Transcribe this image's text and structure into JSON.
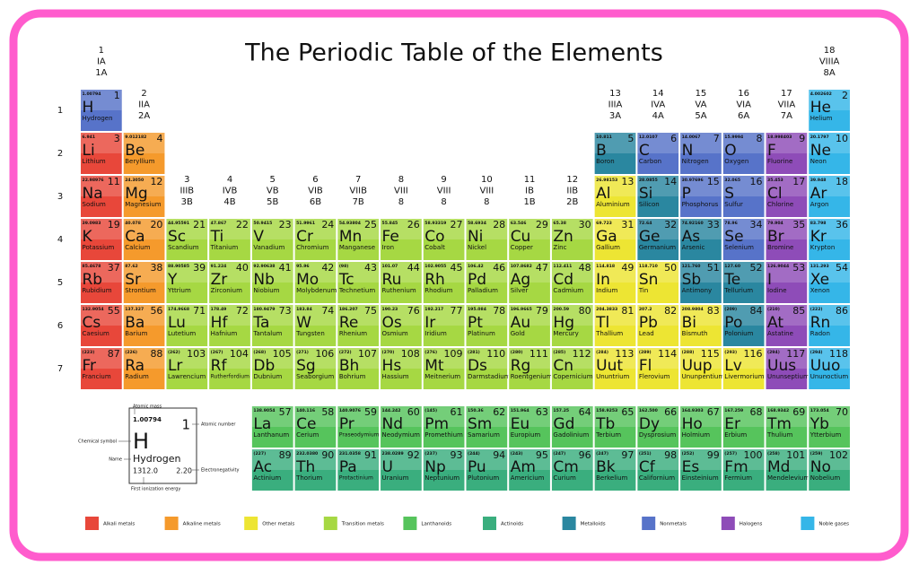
{
  "title": "The Periodic Table of the Elements",
  "groups": [
    [
      "1",
      "IA",
      "1A"
    ],
    [
      "2",
      "IIA",
      "2A"
    ],
    [
      "3",
      "IIIB",
      "3B"
    ],
    [
      "4",
      "IVB",
      "4B"
    ],
    [
      "5",
      "VB",
      "5B"
    ],
    [
      "6",
      "VIB",
      "6B"
    ],
    [
      "7",
      "VIIB",
      "7B"
    ],
    [
      "8",
      "VIII",
      "8"
    ],
    [
      "9",
      "VIII",
      "8"
    ],
    [
      "10",
      "VIII",
      "8"
    ],
    [
      "11",
      "IB",
      "1B"
    ],
    [
      "12",
      "IIB",
      "2B"
    ],
    [
      "13",
      "IIIA",
      "3A"
    ],
    [
      "14",
      "IVA",
      "4A"
    ],
    [
      "15",
      "VA",
      "5A"
    ],
    [
      "16",
      "VIA",
      "6A"
    ],
    [
      "17",
      "VIIA",
      "7A"
    ],
    [
      "18",
      "VIIIA",
      "8A"
    ]
  ],
  "periods": [
    1,
    2,
    3,
    4,
    5,
    6,
    7
  ],
  "elements": [
    [
      "1.00794",
      1,
      "H",
      "Hydrogen",
      "#5773c9"
    ],
    [
      "4.002602",
      2,
      "He",
      "Helium",
      "#35b6e8"
    ],
    [
      "6.941",
      3,
      "Li",
      "Lithium",
      "#e8473a"
    ],
    [
      "9.012182",
      4,
      "Be",
      "Beryllium",
      "#f59a2c"
    ],
    [
      "10.811",
      5,
      "B",
      "Boron",
      "#2a87a0"
    ],
    [
      "12.0107",
      6,
      "C",
      "Carbon",
      "#5773c9"
    ],
    [
      "14.0067",
      7,
      "N",
      "Nitrogen",
      "#5773c9"
    ],
    [
      "15.9994",
      8,
      "O",
      "Oxygen",
      "#5773c9"
    ],
    [
      "18.998403",
      9,
      "F",
      "Fluorine",
      "#8e4cb8"
    ],
    [
      "20.1797",
      10,
      "Ne",
      "Neon",
      "#35b6e8"
    ],
    [
      "22.98976",
      11,
      "Na",
      "Sodium",
      "#e8473a"
    ],
    [
      "24.3050",
      12,
      "Mg",
      "Magnesium",
      "#f59a2c"
    ],
    [
      "26.98153",
      13,
      "Al",
      "Aluminium",
      "#ede533"
    ],
    [
      "28.0855",
      14,
      "Si",
      "Silicon",
      "#2a87a0"
    ],
    [
      "30.97696",
      15,
      "P",
      "Phosphorus",
      "#5773c9"
    ],
    [
      "32.065",
      16,
      "S",
      "Sulfur",
      "#5773c9"
    ],
    [
      "35.453",
      17,
      "Cl",
      "Chlorine",
      "#8e4cb8"
    ],
    [
      "39.948",
      18,
      "Ar",
      "Argon",
      "#35b6e8"
    ],
    [
      "39.0983",
      19,
      "K",
      "Potassium",
      "#e8473a"
    ],
    [
      "40.078",
      20,
      "Ca",
      "Calcium",
      "#f59a2c"
    ],
    [
      "44.95591",
      21,
      "Sc",
      "Scandium",
      "#a6d843"
    ],
    [
      "47.867",
      22,
      "Ti",
      "Titanium",
      "#a6d843"
    ],
    [
      "50.9415",
      23,
      "V",
      "Vanadium",
      "#a6d843"
    ],
    [
      "51.9961",
      24,
      "Cr",
      "Chromium",
      "#a6d843"
    ],
    [
      "54.93804",
      25,
      "Mn",
      "Manganese",
      "#a6d843"
    ],
    [
      "55.845",
      26,
      "Fe",
      "Iron",
      "#a6d843"
    ],
    [
      "58.93319",
      27,
      "Co",
      "Cobalt",
      "#a6d843"
    ],
    [
      "58.6934",
      28,
      "Ni",
      "Nickel",
      "#a6d843"
    ],
    [
      "63.546",
      29,
      "Cu",
      "Copper",
      "#a6d843"
    ],
    [
      "65.38",
      30,
      "Zn",
      "Zinc",
      "#a6d843"
    ],
    [
      "69.723",
      31,
      "Ga",
      "Gallium",
      "#ede533"
    ],
    [
      "72.64",
      32,
      "Ge",
      "Germanium",
      "#2a87a0"
    ],
    [
      "74.92160",
      33,
      "As",
      "Arsenic",
      "#2a87a0"
    ],
    [
      "78.96",
      34,
      "Se",
      "Selenium",
      "#5773c9"
    ],
    [
      "79.904",
      35,
      "Br",
      "Bromine",
      "#8e4cb8"
    ],
    [
      "83.798",
      36,
      "Kr",
      "Krypton",
      "#35b6e8"
    ],
    [
      "85.4678",
      37,
      "Rb",
      "Rubidium",
      "#e8473a"
    ],
    [
      "87.62",
      38,
      "Sr",
      "Strontium",
      "#f59a2c"
    ],
    [
      "88.90585",
      39,
      "Y",
      "Yttrium",
      "#a6d843"
    ],
    [
      "91.224",
      40,
      "Zr",
      "Zirconium",
      "#a6d843"
    ],
    [
      "92.90638",
      41,
      "Nb",
      "Niobium",
      "#a6d843"
    ],
    [
      "95.96",
      42,
      "Mo",
      "Molybdenum",
      "#a6d843"
    ],
    [
      "(98)",
      43,
      "Tc",
      "Technetium",
      "#a6d843"
    ],
    [
      "101.07",
      44,
      "Ru",
      "Ruthenium",
      "#a6d843"
    ],
    [
      "102.9055",
      45,
      "Rh",
      "Rhodium",
      "#a6d843"
    ],
    [
      "106.42",
      46,
      "Pd",
      "Palladium",
      "#a6d843"
    ],
    [
      "107.8682",
      47,
      "Ag",
      "Silver",
      "#a6d843"
    ],
    [
      "112.411",
      48,
      "Cd",
      "Cadmium",
      "#a6d843"
    ],
    [
      "114.818",
      49,
      "In",
      "Indium",
      "#ede533"
    ],
    [
      "118.710",
      50,
      "Sn",
      "Tin",
      "#ede533"
    ],
    [
      "121.760",
      51,
      "Sb",
      "Antimony",
      "#2a87a0"
    ],
    [
      "127.60",
      52,
      "Te",
      "Tellurium",
      "#2a87a0"
    ],
    [
      "126.9044",
      53,
      "I",
      "Iodine",
      "#8e4cb8"
    ],
    [
      "131.293",
      54,
      "Xe",
      "Xenon",
      "#35b6e8"
    ],
    [
      "132.9054",
      55,
      "Cs",
      "Caesium",
      "#e8473a"
    ],
    [
      "137.327",
      56,
      "Ba",
      "Barium",
      "#f59a2c"
    ],
    [
      "174.9668",
      71,
      "Lu",
      "Lutetium",
      "#a6d843"
    ],
    [
      "178.49",
      72,
      "Hf",
      "Hafnium",
      "#a6d843"
    ],
    [
      "180.9479",
      73,
      "Ta",
      "Tantalum",
      "#a6d843"
    ],
    [
      "183.84",
      74,
      "W",
      "Tungsten",
      "#a6d843"
    ],
    [
      "186.207",
      75,
      "Re",
      "Rhenium",
      "#a6d843"
    ],
    [
      "190.23",
      76,
      "Os",
      "Osmium",
      "#a6d843"
    ],
    [
      "192.217",
      77,
      "Ir",
      "Iridium",
      "#a6d843"
    ],
    [
      "195.084",
      78,
      "Pt",
      "Platinum",
      "#a6d843"
    ],
    [
      "196.9665",
      79,
      "Au",
      "Gold",
      "#a6d843"
    ],
    [
      "200.59",
      80,
      "Hg",
      "Mercury",
      "#a6d843"
    ],
    [
      "204.3833",
      81,
      "Tl",
      "Thallium",
      "#ede533"
    ],
    [
      "207.2",
      82,
      "Pb",
      "Lead",
      "#ede533"
    ],
    [
      "208.9804",
      83,
      "Bi",
      "Bismuth",
      "#ede533"
    ],
    [
      "(209)",
      84,
      "Po",
      "Polonium",
      "#2a87a0"
    ],
    [
      "(210)",
      85,
      "At",
      "Astatine",
      "#8e4cb8"
    ],
    [
      "(222)",
      86,
      "Rn",
      "Radon",
      "#35b6e8"
    ],
    [
      "(223)",
      87,
      "Fr",
      "Francium",
      "#e8473a"
    ],
    [
      "(226)",
      88,
      "Ra",
      "Radium",
      "#f59a2c"
    ],
    [
      "(262)",
      103,
      "Lr",
      "Lawrencium",
      "#a6d843"
    ],
    [
      "(267)",
      104,
      "Rf",
      "Rutherfordium",
      "#a6d843"
    ],
    [
      "(268)",
      105,
      "Db",
      "Dubnium",
      "#a6d843"
    ],
    [
      "(271)",
      106,
      "Sg",
      "Seaborgium",
      "#a6d843"
    ],
    [
      "(272)",
      107,
      "Bh",
      "Bohrium",
      "#a6d843"
    ],
    [
      "(270)",
      108,
      "Hs",
      "Hassium",
      "#a6d843"
    ],
    [
      "(276)",
      109,
      "Mt",
      "Meitnerium",
      "#a6d843"
    ],
    [
      "(281)",
      110,
      "Ds",
      "Darmstadium",
      "#a6d843"
    ],
    [
      "(280)",
      111,
      "Rg",
      "Roentgenium",
      "#a6d843"
    ],
    [
      "(285)",
      112,
      "Cn",
      "Copernicium",
      "#a6d843"
    ],
    [
      "(284)",
      113,
      "Uut",
      "Ununtrium",
      "#ede533"
    ],
    [
      "(289)",
      114,
      "Fl",
      "Flerovium",
      "#ede533"
    ],
    [
      "(288)",
      115,
      "Uup",
      "Ununpentium",
      "#ede533"
    ],
    [
      "(293)",
      116,
      "Lv",
      "Livermorium",
      "#ede533"
    ],
    [
      "(294)",
      117,
      "Uus",
      "Ununseptium",
      "#8e4cb8"
    ],
    [
      "(294)",
      118,
      "Uuo",
      "Ununoctium",
      "#35b6e8"
    ],
    [
      "138.9054",
      57,
      "La",
      "Lanthanum",
      "#56c45c"
    ],
    [
      "140.116",
      58,
      "Ce",
      "Cerium",
      "#56c45c"
    ],
    [
      "140.9076",
      59,
      "Pr",
      "Praseodymium",
      "#56c45c"
    ],
    [
      "144.242",
      60,
      "Nd",
      "Neodymium",
      "#56c45c"
    ],
    [
      "(145)",
      61,
      "Pm",
      "Promethium",
      "#56c45c"
    ],
    [
      "150.36",
      62,
      "Sm",
      "Samarium",
      "#56c45c"
    ],
    [
      "151.964",
      63,
      "Eu",
      "Europium",
      "#56c45c"
    ],
    [
      "157.25",
      64,
      "Gd",
      "Gadolinium",
      "#56c45c"
    ],
    [
      "158.9253",
      65,
      "Tb",
      "Terbium",
      "#56c45c"
    ],
    [
      "162.500",
      66,
      "Dy",
      "Dysprosium",
      "#56c45c"
    ],
    [
      "164.9303",
      67,
      "Ho",
      "Holmium",
      "#56c45c"
    ],
    [
      "167.259",
      68,
      "Er",
      "Erbium",
      "#56c45c"
    ],
    [
      "168.9342",
      69,
      "Tm",
      "Thulium",
      "#56c45c"
    ],
    [
      "173.054",
      70,
      "Yb",
      "Ytterbium",
      "#56c45c"
    ],
    [
      "(227)",
      89,
      "Ac",
      "Actinium",
      "#3aae7e"
    ],
    [
      "232.0380",
      90,
      "Th",
      "Thorium",
      "#3aae7e"
    ],
    [
      "231.0358",
      91,
      "Pa",
      "Protactinium",
      "#3aae7e"
    ],
    [
      "238.0289",
      92,
      "U",
      "Uranium",
      "#3aae7e"
    ],
    [
      "(237)",
      93,
      "Np",
      "Neptunium",
      "#3aae7e"
    ],
    [
      "(244)",
      94,
      "Pu",
      "Plutonium",
      "#3aae7e"
    ],
    [
      "(243)",
      95,
      "Am",
      "Americium",
      "#3aae7e"
    ],
    [
      "(247)",
      96,
      "Cm",
      "Curium",
      "#3aae7e"
    ],
    [
      "(247)",
      97,
      "Bk",
      "Berkelium",
      "#3aae7e"
    ],
    [
      "(251)",
      98,
      "Cf",
      "Californium",
      "#3aae7e"
    ],
    [
      "(252)",
      99,
      "Es",
      "Einsteinium",
      "#3aae7e"
    ],
    [
      "(257)",
      100,
      "Fm",
      "Fermium",
      "#3aae7e"
    ],
    [
      "(258)",
      101,
      "Md",
      "Mendelevium",
      "#3aae7e"
    ],
    [
      "(259)",
      102,
      "No",
      "Nobelium",
      "#3aae7e"
    ]
  ],
  "key": {
    "mass": "1.00794",
    "number": 1,
    "symbol": "H",
    "name": "Hydrogen",
    "ionization": "1312.0",
    "electronegativity": "2.20",
    "labels": {
      "mass": "Atomic mass",
      "number": "Atomic number",
      "symbol": "Chemical symbol",
      "name": "Name",
      "electronegativity": "Electronegativity",
      "ionization": "First ionization energy"
    }
  },
  "legend": [
    {
      "name": "Alkali metals",
      "color": "#e8473a"
    },
    {
      "name": "Alkaline metals",
      "color": "#f59a2c"
    },
    {
      "name": "Other metals",
      "color": "#ede533"
    },
    {
      "name": "Transition metals",
      "color": "#a6d843"
    },
    {
      "name": "Lanthanoids",
      "color": "#56c45c"
    },
    {
      "name": "Actinoids",
      "color": "#3aae7e"
    },
    {
      "name": "Metalloids",
      "color": "#2a87a0"
    },
    {
      "name": "Nonmetals",
      "color": "#5773c9"
    },
    {
      "name": "Halogens",
      "color": "#8e4cb8"
    },
    {
      "name": "Noble gases",
      "color": "#35b6e8"
    }
  ]
}
